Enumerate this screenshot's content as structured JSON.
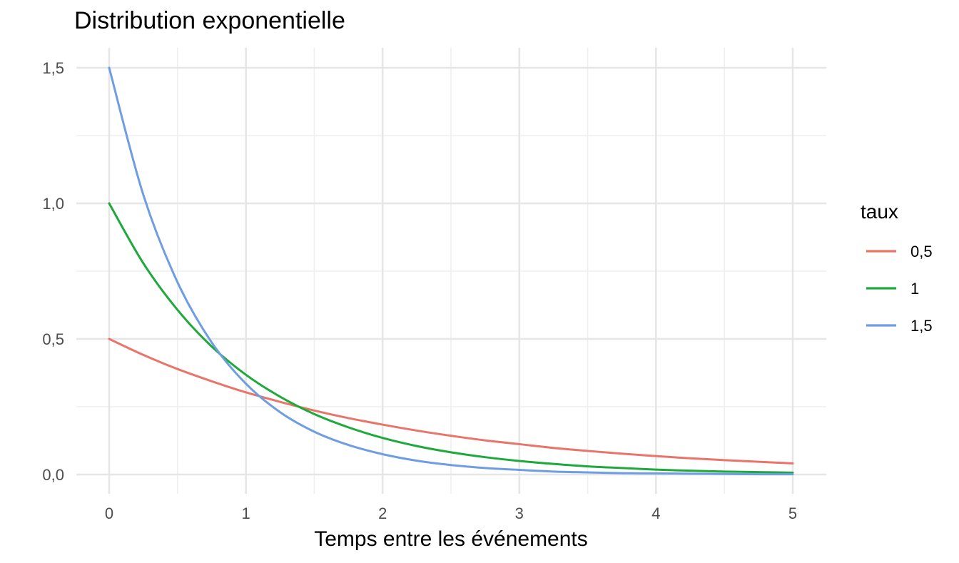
{
  "chart_data": {
    "type": "line",
    "title": "Distribution exponentielle",
    "xlabel": "Temps entre les événements",
    "ylabel": "",
    "xlim": [
      0,
      5
    ],
    "ylim": [
      0,
      1.5
    ],
    "x_ticks": [
      0,
      1,
      2,
      3,
      4,
      5
    ],
    "x_tick_labels": [
      "0",
      "1",
      "2",
      "3",
      "4",
      "5"
    ],
    "y_ticks": [
      0,
      0.5,
      1.0,
      1.5
    ],
    "y_tick_labels": [
      "0,0",
      "0,5",
      "1,0",
      "1,5"
    ],
    "grid": true,
    "legend": {
      "title": "taux",
      "position": "right"
    },
    "x": [
      0,
      0.25,
      0.5,
      0.75,
      1,
      1.25,
      1.5,
      1.75,
      2,
      2.25,
      2.5,
      2.75,
      3,
      3.25,
      3.5,
      3.75,
      4,
      4.25,
      4.5,
      4.75,
      5
    ],
    "series": [
      {
        "name": "0,5",
        "color": "#E8746A",
        "values": [
          0.5,
          0.441,
          0.389,
          0.344,
          0.303,
          0.268,
          0.236,
          0.208,
          0.184,
          0.162,
          0.143,
          0.126,
          0.112,
          0.098,
          0.087,
          0.077,
          0.068,
          0.06,
          0.053,
          0.047,
          0.041
        ]
      },
      {
        "name": "1",
        "color": "#1FA83C",
        "values": [
          1.0,
          0.779,
          0.607,
          0.472,
          0.368,
          0.287,
          0.223,
          0.174,
          0.135,
          0.105,
          0.082,
          0.064,
          0.05,
          0.039,
          0.03,
          0.024,
          0.018,
          0.014,
          0.011,
          0.009,
          0.007
        ]
      },
      {
        "name": "1,5",
        "color": "#6E9DE2",
        "values": [
          1.5,
          1.031,
          0.709,
          0.487,
          0.335,
          0.23,
          0.158,
          0.109,
          0.075,
          0.051,
          0.035,
          0.024,
          0.017,
          0.011,
          0.008,
          0.005,
          0.004,
          0.003,
          0.002,
          0.001,
          0.001
        ]
      }
    ]
  }
}
